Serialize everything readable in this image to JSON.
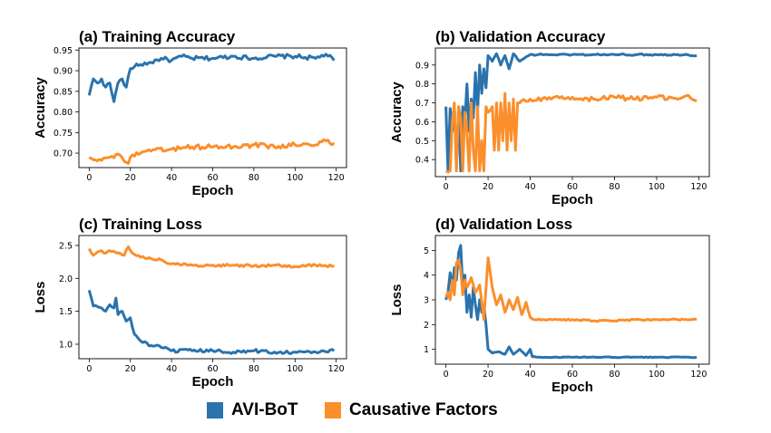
{
  "colors": {
    "series_a": "#2a73ad",
    "series_b": "#fb8f2c"
  },
  "legend": {
    "a_label": "AVI-BoT",
    "b_label": "Causative Factors"
  },
  "chart_data": [
    {
      "type": "line",
      "title": "(a) Training Accuracy",
      "xlabel": "Epoch",
      "ylabel": "Accuracy",
      "xlim": [
        -5,
        125
      ],
      "ylim": [
        0.665,
        0.955
      ],
      "xticks": [
        0,
        20,
        40,
        60,
        80,
        100,
        120
      ],
      "yticks": [
        0.7,
        0.75,
        0.8,
        0.85,
        0.9,
        0.95
      ],
      "ytick_labels": [
        "0.70",
        "0.75",
        "0.80",
        "0.85",
        "0.90",
        "0.95"
      ],
      "series": [
        {
          "name": "AVI-BoT",
          "keypoints": [
            [
              0,
              0.84
            ],
            [
              2,
              0.88
            ],
            [
              4,
              0.87
            ],
            [
              6,
              0.88
            ],
            [
              8,
              0.86
            ],
            [
              10,
              0.87
            ],
            [
              12,
              0.825
            ],
            [
              14,
              0.87
            ],
            [
              16,
              0.88
            ],
            [
              18,
              0.86
            ],
            [
              20,
              0.905
            ],
            [
              22,
              0.91
            ],
            [
              25,
              0.915
            ],
            [
              30,
              0.92
            ],
            [
              35,
              0.93
            ],
            [
              40,
              0.925
            ],
            [
              45,
              0.935
            ],
            [
              50,
              0.93
            ],
            [
              60,
              0.93
            ],
            [
              70,
              0.935
            ],
            [
              80,
              0.93
            ],
            [
              90,
              0.935
            ],
            [
              100,
              0.935
            ],
            [
              110,
              0.93
            ],
            [
              115,
              0.94
            ],
            [
              119,
              0.925
            ]
          ],
          "noise": 0.005
        },
        {
          "name": "Causative Factors",
          "keypoints": [
            [
              0,
              0.69
            ],
            [
              5,
              0.685
            ],
            [
              10,
              0.69
            ],
            [
              15,
              0.695
            ],
            [
              19,
              0.675
            ],
            [
              20,
              0.69
            ],
            [
              25,
              0.7
            ],
            [
              30,
              0.705
            ],
            [
              40,
              0.71
            ],
            [
              50,
              0.715
            ],
            [
              60,
              0.715
            ],
            [
              70,
              0.715
            ],
            [
              80,
              0.72
            ],
            [
              90,
              0.715
            ],
            [
              100,
              0.72
            ],
            [
              110,
              0.72
            ],
            [
              115,
              0.73
            ],
            [
              119,
              0.725
            ]
          ],
          "noise": 0.006
        }
      ]
    },
    {
      "type": "line",
      "title": "(b) Validation Accuracy",
      "xlabel": "Epoch",
      "ylabel": "Accuracy",
      "xlim": [
        -5,
        125
      ],
      "ylim": [
        0.31,
        0.99
      ],
      "xticks": [
        0,
        20,
        40,
        60,
        80,
        100,
        120
      ],
      "yticks": [
        0.4,
        0.5,
        0.6,
        0.7,
        0.8,
        0.9
      ],
      "ytick_labels": [
        "0.4",
        "0.5",
        "0.6",
        "0.7",
        "0.8",
        "0.9"
      ],
      "series": [
        {
          "name": "AVI-BoT",
          "keypoints": [
            [
              0,
              0.68
            ],
            [
              1,
              0.34
            ],
            [
              2,
              0.67
            ],
            [
              3,
              0.55
            ],
            [
              4,
              0.68
            ],
            [
              5,
              0.36
            ],
            [
              6,
              0.68
            ],
            [
              7,
              0.34
            ],
            [
              8,
              0.68
            ],
            [
              9,
              0.6
            ],
            [
              10,
              0.8
            ],
            [
              11,
              0.55
            ],
            [
              12,
              0.72
            ],
            [
              13,
              0.62
            ],
            [
              14,
              0.86
            ],
            [
              15,
              0.65
            ],
            [
              16,
              0.9
            ],
            [
              17,
              0.75
            ],
            [
              18,
              0.88
            ],
            [
              19,
              0.78
            ],
            [
              20,
              0.95
            ],
            [
              22,
              0.92
            ],
            [
              24,
              0.96
            ],
            [
              26,
              0.9
            ],
            [
              28,
              0.95
            ],
            [
              30,
              0.88
            ],
            [
              32,
              0.96
            ],
            [
              35,
              0.92
            ],
            [
              40,
              0.955
            ],
            [
              50,
              0.955
            ],
            [
              60,
              0.955
            ],
            [
              70,
              0.955
            ],
            [
              80,
              0.955
            ],
            [
              90,
              0.955
            ],
            [
              100,
              0.955
            ],
            [
              110,
              0.955
            ],
            [
              119,
              0.95
            ]
          ],
          "noise": 0.004
        },
        {
          "name": "Causative Factors",
          "keypoints": [
            [
              0,
              0.34
            ],
            [
              2,
              0.34
            ],
            [
              3,
              0.6
            ],
            [
              4,
              0.7
            ],
            [
              5,
              0.34
            ],
            [
              6,
              0.68
            ],
            [
              7,
              0.62
            ],
            [
              8,
              0.34
            ],
            [
              9,
              0.65
            ],
            [
              10,
              0.55
            ],
            [
              11,
              0.34
            ],
            [
              12,
              0.7
            ],
            [
              13,
              0.45
            ],
            [
              14,
              0.34
            ],
            [
              15,
              0.68
            ],
            [
              16,
              0.34
            ],
            [
              17,
              0.5
            ],
            [
              18,
              0.34
            ],
            [
              19,
              0.68
            ],
            [
              20,
              0.65
            ],
            [
              22,
              0.68
            ],
            [
              23,
              0.45
            ],
            [
              24,
              0.7
            ],
            [
              25,
              0.45
            ],
            [
              26,
              0.7
            ],
            [
              27,
              0.5
            ],
            [
              28,
              0.75
            ],
            [
              29,
              0.45
            ],
            [
              30,
              0.7
            ],
            [
              31,
              0.5
            ],
            [
              32,
              0.72
            ],
            [
              33,
              0.45
            ],
            [
              34,
              0.7
            ],
            [
              35,
              0.7
            ],
            [
              40,
              0.72
            ],
            [
              50,
              0.72
            ],
            [
              60,
              0.73
            ],
            [
              70,
              0.72
            ],
            [
              80,
              0.73
            ],
            [
              90,
              0.72
            ],
            [
              100,
              0.73
            ],
            [
              110,
              0.72
            ],
            [
              115,
              0.74
            ],
            [
              119,
              0.71
            ]
          ],
          "noise": 0.012
        }
      ]
    },
    {
      "type": "line",
      "title": "(c) Training Loss",
      "xlabel": "Epoch",
      "ylabel": "Loss",
      "xlim": [
        -5,
        125
      ],
      "ylim": [
        0.78,
        2.65
      ],
      "xticks": [
        0,
        20,
        40,
        60,
        80,
        100,
        120
      ],
      "yticks": [
        1.0,
        1.5,
        2.0,
        2.5
      ],
      "ytick_labels": [
        "1.0",
        "1.5",
        "2.0",
        "2.5"
      ],
      "series": [
        {
          "name": "AVI-BoT",
          "keypoints": [
            [
              0,
              1.82
            ],
            [
              2,
              1.58
            ],
            [
              4,
              1.57
            ],
            [
              6,
              1.55
            ],
            [
              8,
              1.5
            ],
            [
              10,
              1.6
            ],
            [
              12,
              1.55
            ],
            [
              13,
              1.7
            ],
            [
              14,
              1.45
            ],
            [
              16,
              1.5
            ],
            [
              18,
              1.35
            ],
            [
              20,
              1.4
            ],
            [
              22,
              1.15
            ],
            [
              25,
              1.05
            ],
            [
              30,
              0.98
            ],
            [
              35,
              0.95
            ],
            [
              40,
              0.9
            ],
            [
              50,
              0.9
            ],
            [
              60,
              0.9
            ],
            [
              70,
              0.88
            ],
            [
              80,
              0.9
            ],
            [
              90,
              0.88
            ],
            [
              100,
              0.88
            ],
            [
              110,
              0.88
            ],
            [
              119,
              0.9
            ]
          ],
          "noise": 0.025
        },
        {
          "name": "Causative Factors",
          "keypoints": [
            [
              0,
              2.45
            ],
            [
              2,
              2.35
            ],
            [
              4,
              2.4
            ],
            [
              6,
              2.42
            ],
            [
              8,
              2.38
            ],
            [
              10,
              2.42
            ],
            [
              15,
              2.38
            ],
            [
              17,
              2.35
            ],
            [
              19,
              2.48
            ],
            [
              21,
              2.38
            ],
            [
              25,
              2.32
            ],
            [
              30,
              2.3
            ],
            [
              35,
              2.28
            ],
            [
              40,
              2.22
            ],
            [
              50,
              2.2
            ],
            [
              60,
              2.2
            ],
            [
              70,
              2.2
            ],
            [
              80,
              2.19
            ],
            [
              90,
              2.2
            ],
            [
              100,
              2.18
            ],
            [
              110,
              2.2
            ],
            [
              119,
              2.19
            ]
          ],
          "noise": 0.02
        }
      ]
    },
    {
      "type": "line",
      "title": "(d) Validation Loss",
      "xlabel": "Epoch",
      "ylabel": "Loss",
      "xlim": [
        -5,
        125
      ],
      "ylim": [
        0.4,
        5.6
      ],
      "xticks": [
        0,
        20,
        40,
        60,
        80,
        100,
        120
      ],
      "yticks": [
        1,
        2,
        3,
        4,
        5
      ],
      "ytick_labels": [
        "1",
        "2",
        "3",
        "4",
        "5"
      ],
      "series": [
        {
          "name": "AVI-BoT",
          "keypoints": [
            [
              0,
              3.0
            ],
            [
              1,
              3.3
            ],
            [
              2,
              4.1
            ],
            [
              3,
              3.5
            ],
            [
              4,
              4.3
            ],
            [
              5,
              3.8
            ],
            [
              6,
              4.9
            ],
            [
              7,
              5.2
            ],
            [
              8,
              3.5
            ],
            [
              9,
              4.0
            ],
            [
              10,
              2.5
            ],
            [
              11,
              3.2
            ],
            [
              12,
              2.3
            ],
            [
              13,
              3.5
            ],
            [
              14,
              2.8
            ],
            [
              15,
              2.2
            ],
            [
              16,
              3.0
            ],
            [
              17,
              2.5
            ],
            [
              18,
              2.8
            ],
            [
              19,
              2.0
            ],
            [
              20,
              1.0
            ],
            [
              22,
              0.85
            ],
            [
              25,
              0.9
            ],
            [
              28,
              0.8
            ],
            [
              30,
              1.1
            ],
            [
              32,
              0.8
            ],
            [
              35,
              1.0
            ],
            [
              38,
              0.75
            ],
            [
              40,
              1.0
            ],
            [
              41,
              0.7
            ],
            [
              45,
              0.68
            ],
            [
              60,
              0.68
            ],
            [
              80,
              0.68
            ],
            [
              100,
              0.68
            ],
            [
              119,
              0.68
            ]
          ],
          "noise": 0.015
        },
        {
          "name": "Causative Factors",
          "keypoints": [
            [
              0,
              3.1
            ],
            [
              1,
              3.3
            ],
            [
              2,
              3.0
            ],
            [
              3,
              3.8
            ],
            [
              4,
              3.2
            ],
            [
              5,
              4.5
            ],
            [
              6,
              4.6
            ],
            [
              7,
              4.2
            ],
            [
              8,
              3.2
            ],
            [
              9,
              3.8
            ],
            [
              10,
              3.5
            ],
            [
              12,
              3.9
            ],
            [
              14,
              3.3
            ],
            [
              16,
              3.6
            ],
            [
              18,
              2.2
            ],
            [
              20,
              4.7
            ],
            [
              22,
              3.5
            ],
            [
              24,
              2.8
            ],
            [
              26,
              3.2
            ],
            [
              28,
              2.5
            ],
            [
              30,
              3.0
            ],
            [
              32,
              2.6
            ],
            [
              34,
              3.1
            ],
            [
              36,
              2.4
            ],
            [
              38,
              2.9
            ],
            [
              40,
              2.3
            ],
            [
              42,
              2.2
            ],
            [
              50,
              2.2
            ],
            [
              60,
              2.2
            ],
            [
              70,
              2.15
            ],
            [
              80,
              2.15
            ],
            [
              90,
              2.2
            ],
            [
              100,
              2.2
            ],
            [
              110,
              2.2
            ],
            [
              119,
              2.2
            ]
          ],
          "noise": 0.03
        }
      ]
    }
  ]
}
